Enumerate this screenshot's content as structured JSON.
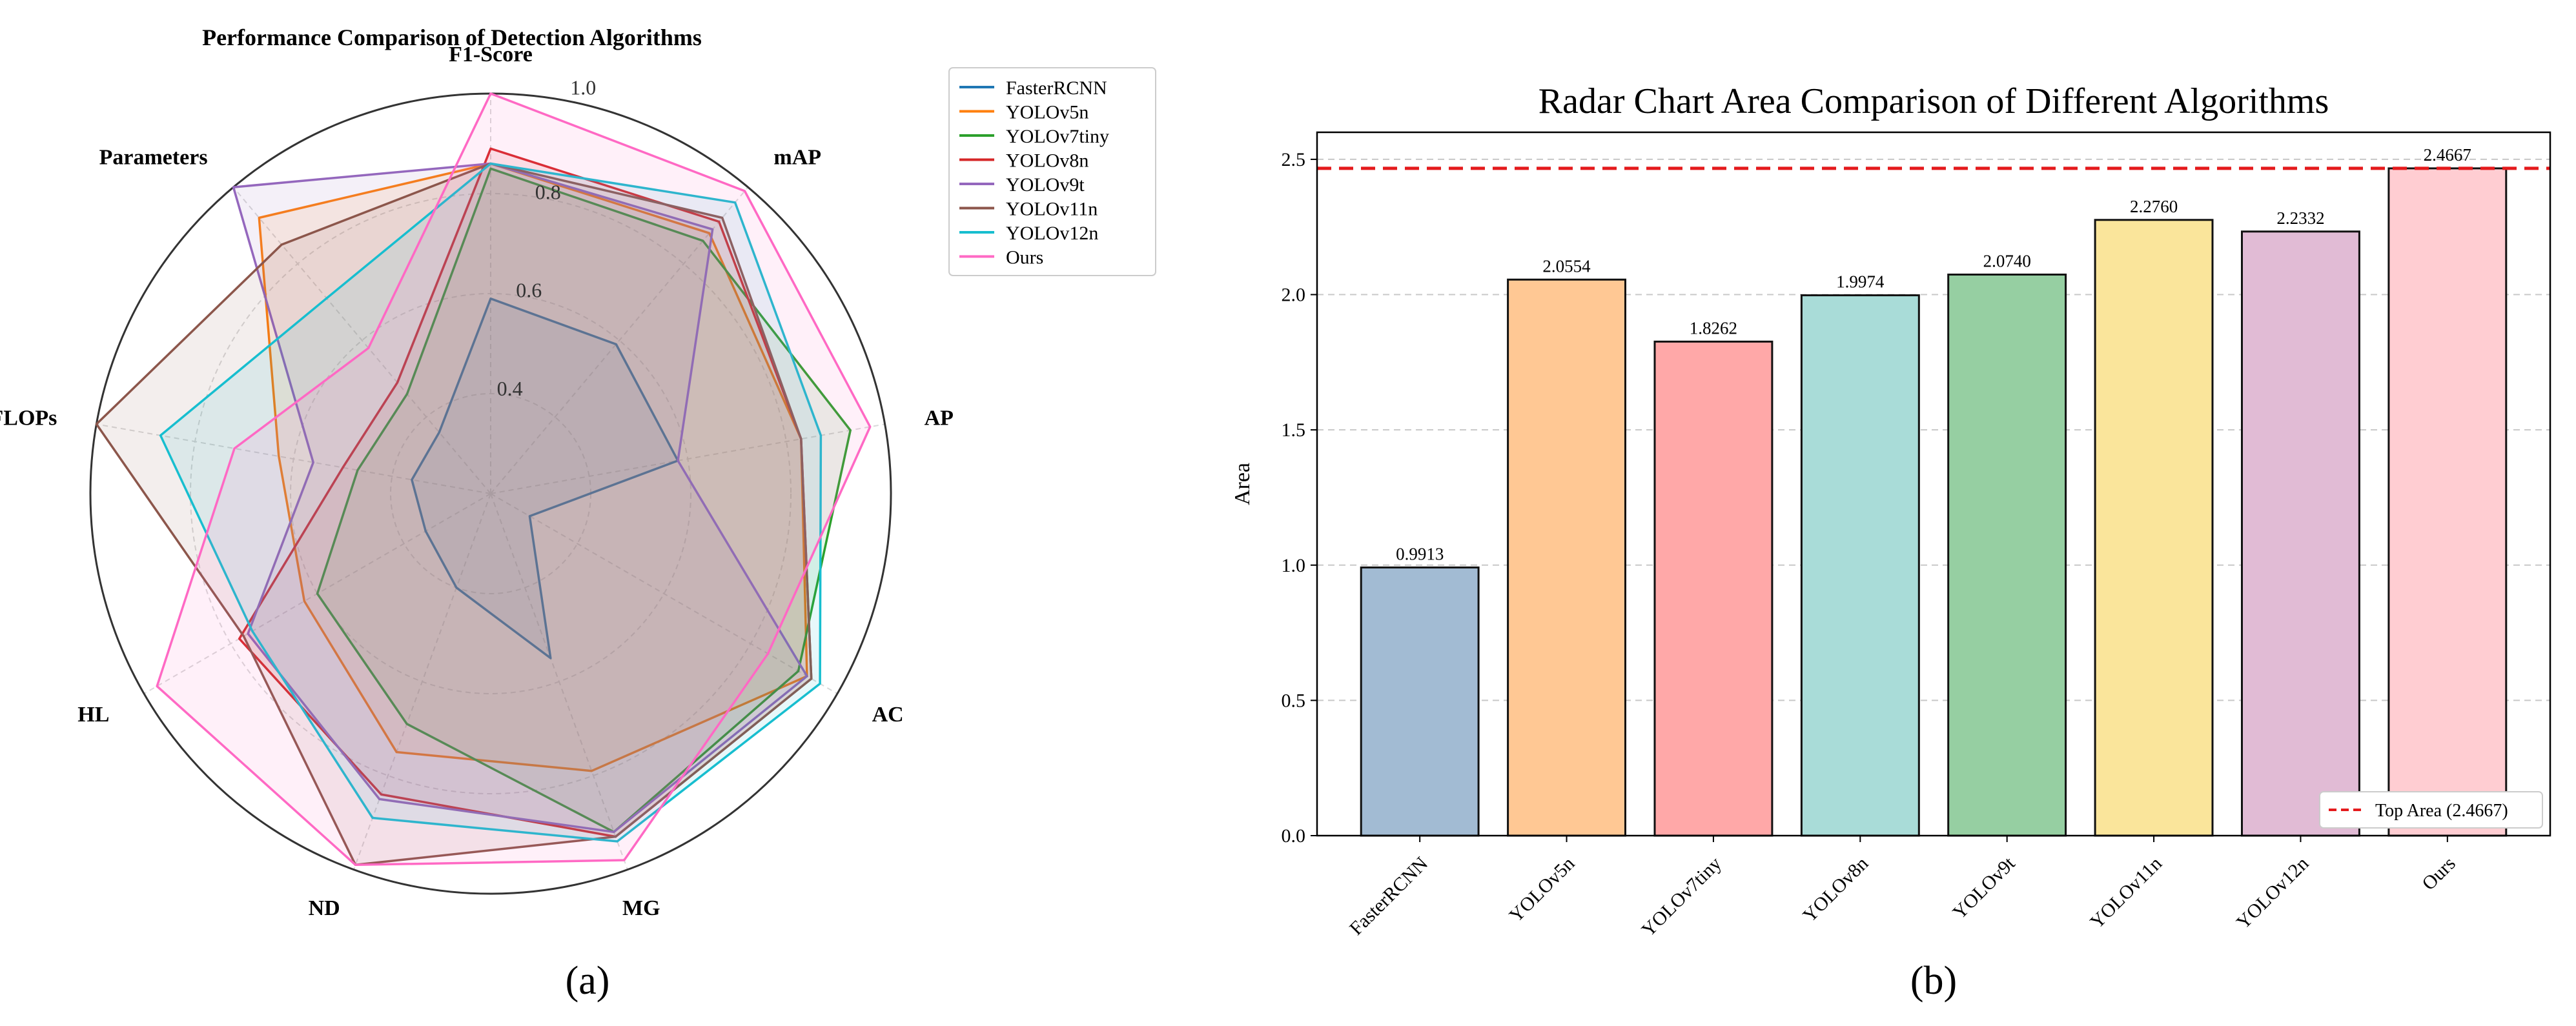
{
  "chart_data": [
    {
      "type": "radar",
      "panel_label": "(a)",
      "title": "Performance Comparison of Detection Algorithms",
      "axes": [
        "F1-Score",
        "mAP",
        "AP",
        "AC",
        "MG",
        "ND",
        "HL",
        "GFLOPs",
        "Parameters"
      ],
      "rlim": [
        0.2,
        1.0
      ],
      "radial_ticks": [
        0.4,
        0.6,
        0.8,
        1.0
      ],
      "radial_tick_labels": [
        "0.4",
        "0.6",
        "0.8",
        "1.0"
      ],
      "legend_position": "top-right",
      "series": [
        {
          "name": "FasterRCNN",
          "color": "#1f77b4",
          "values": [
            0.59,
            0.59,
            0.58,
            0.29,
            0.55,
            0.4,
            0.35,
            0.36,
            0.36
          ]
        },
        {
          "name": "YOLOv5n",
          "color": "#ff7f0e",
          "values": [
            0.86,
            0.88,
            0.83,
            0.93,
            0.79,
            0.75,
            0.63,
            0.63,
            0.92
          ]
        },
        {
          "name": "YOLOv7tiny",
          "color": "#2ca02c",
          "values": [
            0.85,
            0.86,
            0.93,
            0.91,
            0.92,
            0.69,
            0.6,
            0.47,
            0.46
          ]
        },
        {
          "name": "YOLOv8n",
          "color": "#d62728",
          "values": [
            0.89,
            0.91,
            0.83,
            0.94,
            0.93,
            0.84,
            0.78,
            0.5,
            0.49
          ]
        },
        {
          "name": "YOLOv9t",
          "color": "#9467bd",
          "values": [
            0.86,
            0.89,
            0.58,
            0.93,
            0.92,
            0.85,
            0.76,
            0.56,
            1.0
          ]
        },
        {
          "name": "YOLOv11n",
          "color": "#8c564b",
          "values": [
            0.86,
            0.92,
            0.83,
            0.94,
            0.93,
            0.99,
            0.77,
            1.0,
            0.85
          ]
        },
        {
          "name": "YOLOv12n",
          "color": "#17becf",
          "values": [
            0.86,
            0.96,
            0.87,
            0.96,
            0.94,
            0.89,
            0.75,
            0.87,
            0.71
          ]
        },
        {
          "name": "Ours",
          "color": "#ff69c4",
          "values": [
            1.0,
            0.99,
            0.97,
            0.84,
            0.98,
            0.99,
            0.97,
            0.72,
            0.58
          ]
        }
      ]
    },
    {
      "type": "bar",
      "panel_label": "(b)",
      "title": "Radar Chart Area Comparison of Different Algorithms",
      "xlabel": "",
      "ylabel": "Area",
      "ylim": [
        0,
        2.6
      ],
      "yticks": [
        0.0,
        0.5,
        1.0,
        1.5,
        2.0,
        2.5
      ],
      "ytick_labels": [
        "0.0",
        "0.5",
        "1.0",
        "1.5",
        "2.0",
        "2.5"
      ],
      "grid": "y-dashed",
      "categories": [
        "FasterRCNN",
        "YOLOv5n",
        "YOLOv7tiny",
        "YOLOv8n",
        "YOLOv9t",
        "YOLOv11n",
        "YOLOv12n",
        "Ours"
      ],
      "values": [
        0.9913,
        2.0554,
        1.8262,
        1.9974,
        2.074,
        2.276,
        2.2332,
        2.4667
      ],
      "value_labels": [
        "0.9913",
        "2.0554",
        "1.8262",
        "1.9974",
        "2.0740",
        "2.2760",
        "2.2332",
        "2.4667"
      ],
      "bar_colors": [
        "#a2bbd3",
        "#ffc894",
        "#ffa8a8",
        "#a9dcd8",
        "#96cfa2",
        "#fae59b",
        "#e1bbd5",
        "#ffcdd2"
      ],
      "reference_line": {
        "value": 2.4667,
        "label": "Top Area (2.4667)",
        "color": "#e41a1c"
      },
      "legend_position": "bottom-right"
    }
  ]
}
